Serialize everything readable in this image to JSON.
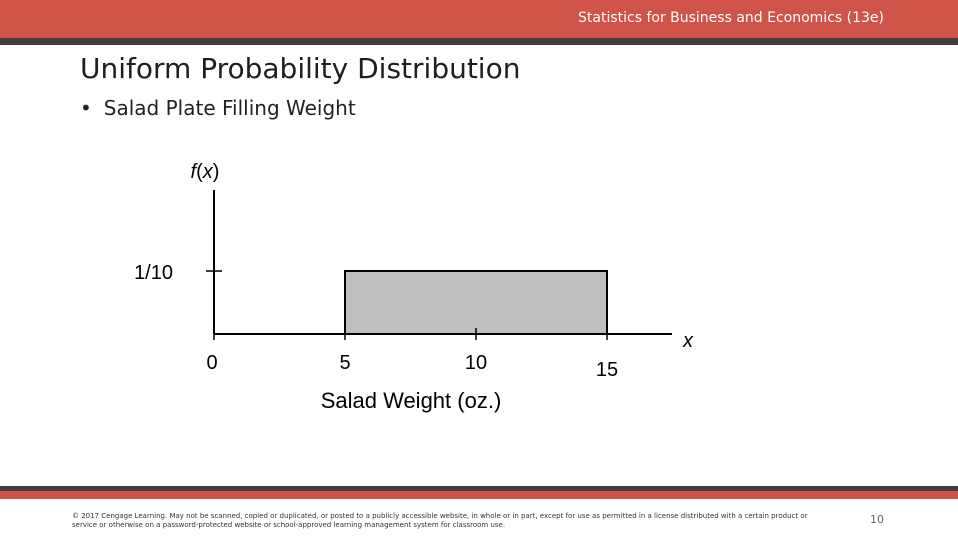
{
  "header": {
    "course": "Statistics for Business and Economics (13e)"
  },
  "slide": {
    "title": "Uniform Probability Distribution",
    "bullet": "Salad Plate Filling Weight"
  },
  "chart_data": {
    "type": "area",
    "ylabel": "f(x)",
    "xlabel_axis": "x",
    "xlabel": "Salad Weight (oz.)",
    "x_ticks": [
      0,
      5,
      10,
      15
    ],
    "y_ticks": [
      {
        "value": 0.1,
        "label": "1/10"
      }
    ],
    "region": {
      "x_start": 5,
      "x_end": 15,
      "density": 0.1
    },
    "fill_color": "#bfbfbf",
    "grid": false
  },
  "footer": {
    "copyright": "© 2017 Cengage Learning. May not be scanned, copied or duplicated, or posted to a publicly accessible website, in whole or in part, except for use as permitted in a license distributed with a certain product or service or otherwise on a password-protected website or school-approved learning management system for classroom use.",
    "page_number": "10"
  }
}
